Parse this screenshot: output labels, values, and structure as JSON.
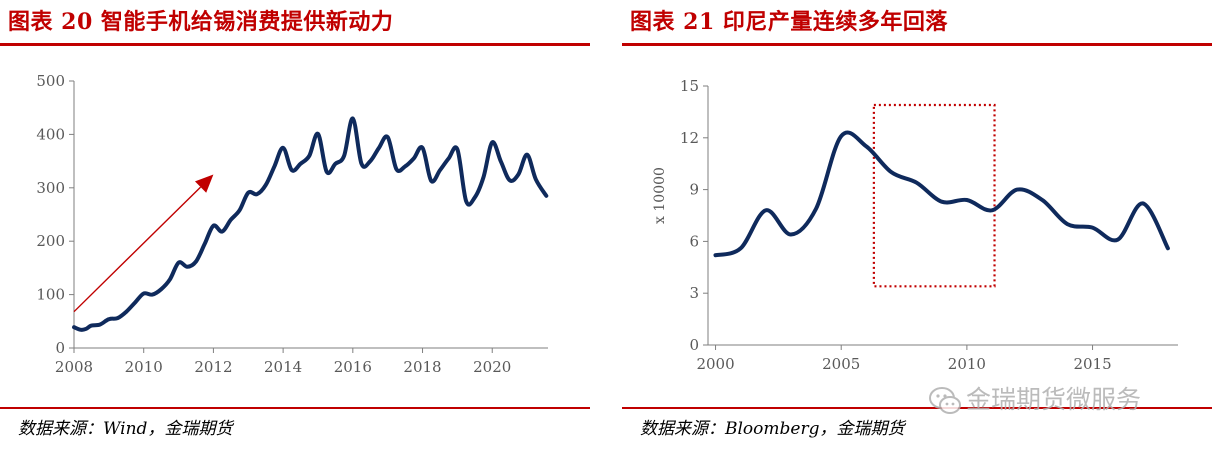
{
  "left": {
    "title": "图表 20 智能手机给锡消费提供新动力",
    "source": "数据来源：Wind，金瑞期货",
    "chart_data": {
      "type": "line",
      "title": "",
      "xlabel": "",
      "ylabel": "",
      "xlim": [
        2008,
        2021.6
      ],
      "ylim": [
        0,
        500
      ],
      "yticks": [
        0,
        100,
        200,
        300,
        400,
        500
      ],
      "xticks": [
        2008,
        2010,
        2012,
        2014,
        2016,
        2018,
        2020
      ],
      "grid": false,
      "legend": "none",
      "line_color": "#0f2a5c",
      "series": [
        {
          "x": [
            2008.0,
            2008.2,
            2008.35,
            2008.5,
            2008.75,
            2009.0,
            2009.25,
            2009.5,
            2009.75,
            2010.0,
            2010.25,
            2010.5,
            2010.75,
            2011.0,
            2011.25,
            2011.5,
            2011.75,
            2012.0,
            2012.25,
            2012.5,
            2012.75,
            2013.0,
            2013.25,
            2013.5,
            2013.75,
            2014.0,
            2014.25,
            2014.5,
            2014.75,
            2015.0,
            2015.25,
            2015.5,
            2015.75,
            2016.0,
            2016.25,
            2016.5,
            2016.75,
            2017.0,
            2017.25,
            2017.5,
            2017.75,
            2018.0,
            2018.25,
            2018.5,
            2018.75,
            2019.0,
            2019.25,
            2019.5,
            2019.75,
            2020.0,
            2020.25,
            2020.5,
            2020.75,
            2021.0,
            2021.25,
            2021.55
          ],
          "y": [
            39,
            34,
            36,
            42,
            44,
            54,
            56,
            68,
            85,
            102,
            100,
            110,
            128,
            160,
            152,
            162,
            195,
            229,
            218,
            240,
            258,
            291,
            288,
            305,
            340,
            375,
            333,
            345,
            360,
            401,
            330,
            345,
            360,
            430,
            345,
            350,
            375,
            395,
            335,
            340,
            355,
            375,
            313,
            333,
            355,
            372,
            275,
            282,
            320,
            385,
            349,
            314,
            325,
            362,
            316,
            285
          ]
        }
      ],
      "annotation": {
        "type": "arrow",
        "color": "#c00000",
        "from": [
          2008.0,
          68
        ],
        "to": [
          2012.0,
          325
        ]
      }
    }
  },
  "right": {
    "title": "图表 21 印尼产量连续多年回落",
    "source": "数据来源：Bloomberg，金瑞期货",
    "watermark": "金瑞期货微服务",
    "chart_data": {
      "type": "line",
      "title": "",
      "xlabel": "",
      "ylabel": "x 10000",
      "xlim": [
        1999.7,
        2018.4
      ],
      "ylim": [
        0,
        15
      ],
      "yticks": [
        0,
        3,
        6,
        9,
        12,
        15
      ],
      "xticks": [
        2000,
        2005,
        2010,
        2015
      ],
      "grid": false,
      "legend": "none",
      "line_color": "#0f2a5c",
      "series": [
        {
          "x": [
            2000.0,
            2001.0,
            2002.0,
            2003.0,
            2004.0,
            2005.0,
            2006.0,
            2007.0,
            2008.0,
            2009.0,
            2010.0,
            2011.0,
            2012.0,
            2013.0,
            2014.0,
            2015.0,
            2016.0,
            2017.0,
            2018.0
          ],
          "y": [
            5.2,
            5.6,
            7.8,
            6.4,
            7.9,
            12.1,
            11.5,
            10.0,
            9.4,
            8.3,
            8.4,
            7.8,
            9.0,
            8.4,
            7.0,
            6.8,
            6.1,
            8.2,
            5.6
          ]
        }
      ],
      "highlight_box": {
        "x": [
          2006.3,
          2011.1
        ],
        "y": [
          3.4,
          13.9
        ],
        "color": "#c00000",
        "style": "dotted"
      }
    }
  }
}
